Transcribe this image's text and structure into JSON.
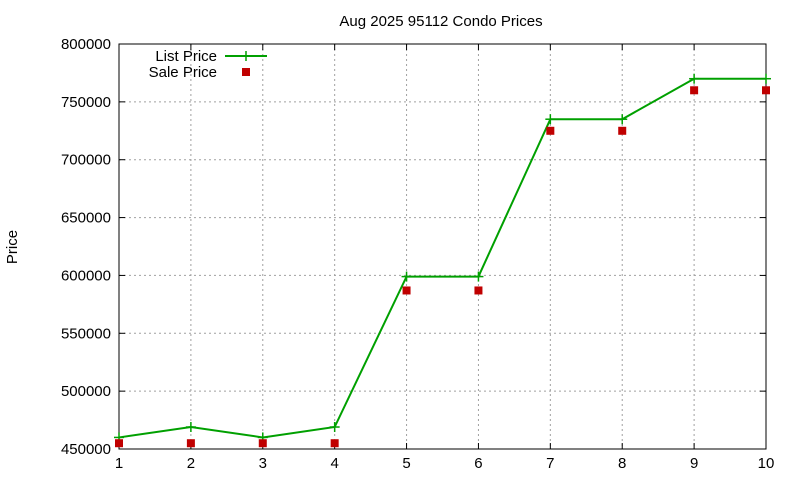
{
  "chart_data": {
    "type": "line",
    "title": "Aug 2025 95112 Condo Prices",
    "xlabel": "",
    "ylabel": "Price",
    "x": [
      1,
      2,
      3,
      4,
      5,
      6,
      7,
      8,
      9,
      10
    ],
    "xlim": [
      1,
      10
    ],
    "ylim": [
      450000,
      800000
    ],
    "yticks": [
      450000,
      500000,
      550000,
      600000,
      650000,
      700000,
      750000,
      800000
    ],
    "xticks": [
      1,
      2,
      3,
      4,
      5,
      6,
      7,
      8,
      9,
      10
    ],
    "grid": true,
    "legend_position": "top-left",
    "series": [
      {
        "name": "List Price",
        "style": "line-points",
        "color": "#00a000",
        "values": [
          460000,
          469000,
          460000,
          469000,
          599000,
          599000,
          735000,
          735000,
          770000,
          770000
        ]
      },
      {
        "name": "Sale Price",
        "style": "points",
        "color": "#c00000",
        "values": [
          455000,
          455000,
          455000,
          455000,
          587000,
          587000,
          725000,
          725000,
          760000,
          760000
        ]
      }
    ]
  }
}
